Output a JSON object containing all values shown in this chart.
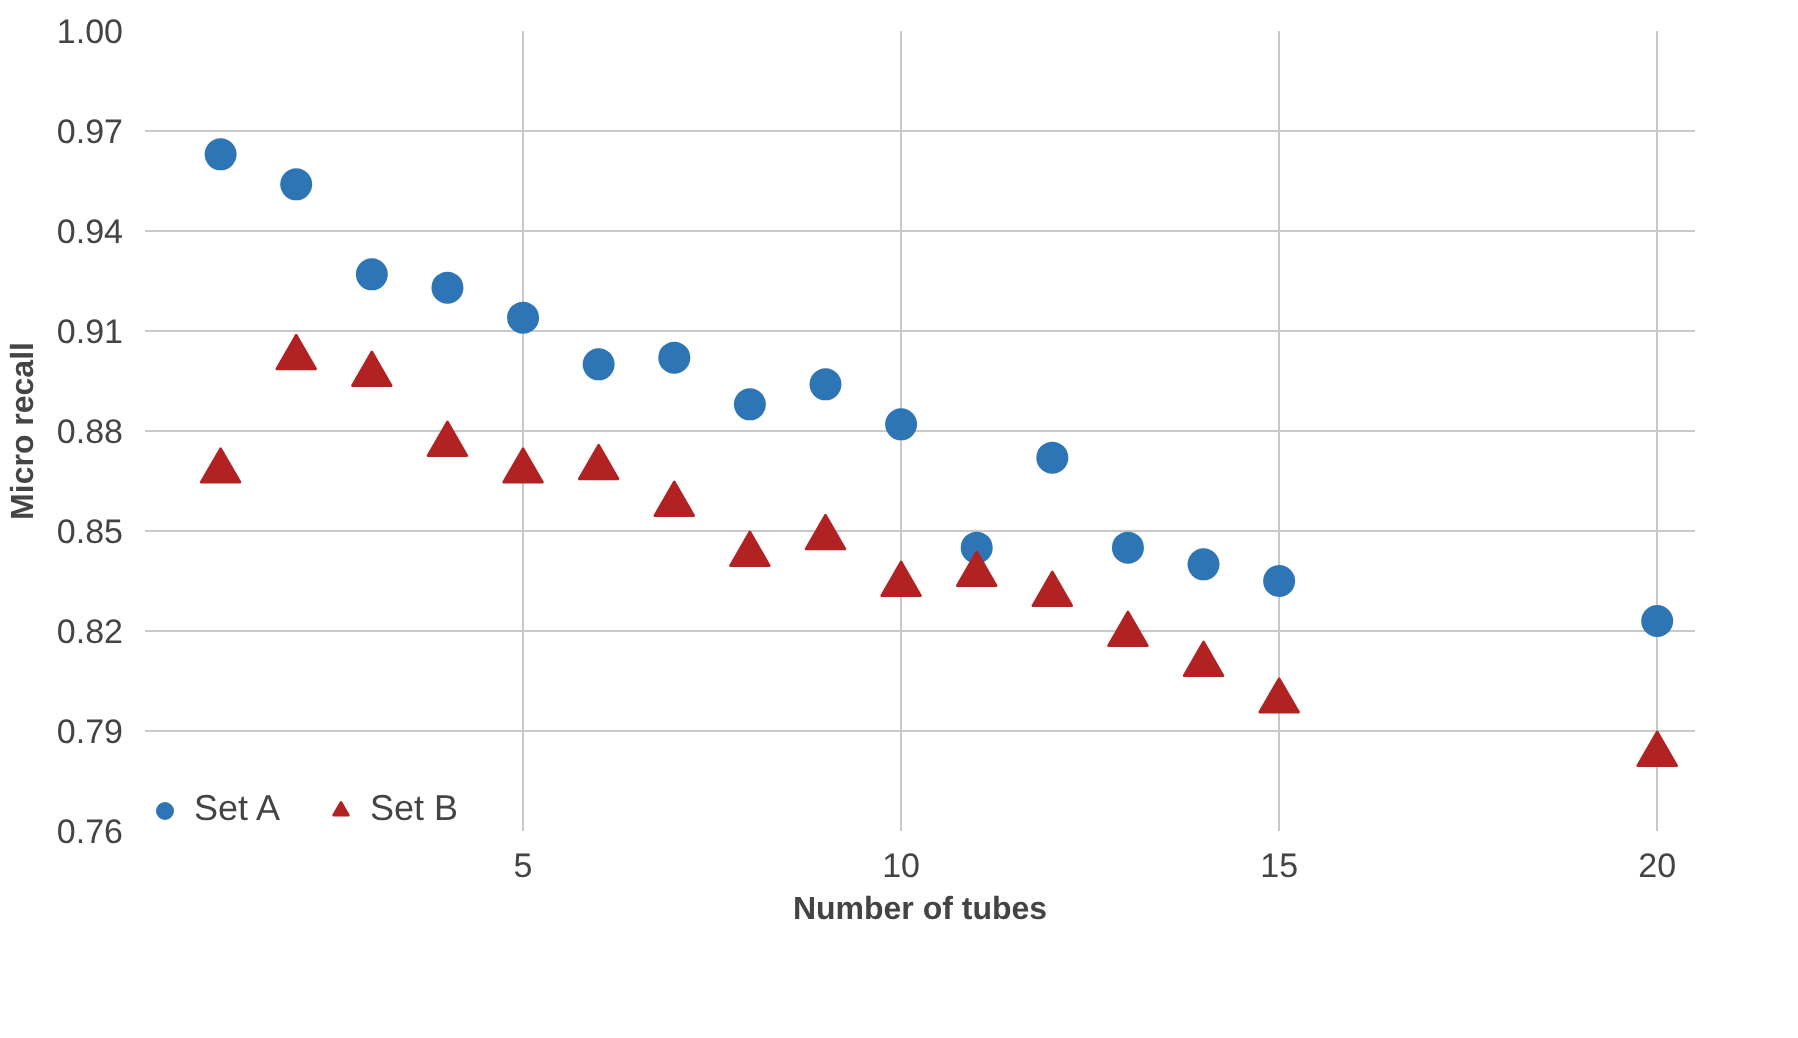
{
  "chart_data": {
    "type": "scatter",
    "xlabel": "Number of tubes",
    "ylabel": "Micro recall",
    "x": [
      1,
      2,
      3,
      4,
      5,
      6,
      7,
      8,
      9,
      10,
      11,
      12,
      13,
      14,
      15,
      20
    ],
    "series": [
      {
        "name": "Set A",
        "color": "#2e75b6",
        "marker": "circle",
        "values": [
          0.963,
          0.954,
          0.927,
          0.923,
          0.914,
          0.9,
          0.902,
          0.888,
          0.894,
          0.882,
          0.845,
          0.872,
          0.845,
          0.84,
          0.835,
          0.823
        ]
      },
      {
        "name": "Set B",
        "color": "#b22222",
        "marker": "triangle",
        "values": [
          0.868,
          0.902,
          0.897,
          0.876,
          0.868,
          0.869,
          0.858,
          0.843,
          0.848,
          0.834,
          0.837,
          0.831,
          0.819,
          0.81,
          0.799,
          0.783
        ]
      }
    ],
    "xlim": [
      0,
      20.5
    ],
    "xticks": [
      5,
      10,
      15,
      20
    ],
    "ylim": [
      0.76,
      1.0
    ],
    "yticks": [
      {
        "value": 0.76,
        "label": "0.76"
      },
      {
        "value": 0.79,
        "label": "0.79"
      },
      {
        "value": 0.82,
        "label": "0.82"
      },
      {
        "value": 0.85,
        "label": "0.85"
      },
      {
        "value": 0.88,
        "label": "0.88"
      },
      {
        "value": 0.91,
        "label": "0.91"
      },
      {
        "value": 0.94,
        "label": "0.94"
      },
      {
        "value": 0.97,
        "label": "0.97"
      },
      {
        "value": 1.0,
        "label": "1.00"
      }
    ],
    "grid": true,
    "legend": "bottom left"
  }
}
